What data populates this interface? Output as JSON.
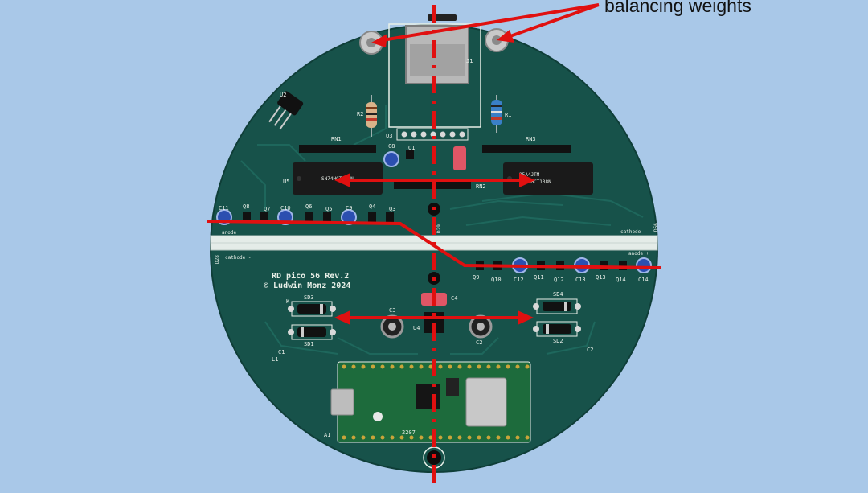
{
  "annotation": {
    "text": "balancing weights",
    "color": "#e01010"
  },
  "board": {
    "title": "RD pico 56 Rev.2",
    "copyright": "© Ludwin Monz 2024",
    "pcb_color": "#17524a",
    "silkscreen_color": "#e8efe8",
    "labels": {
      "j1": "J1",
      "u2": "U2",
      "u3": "U3",
      "u4": "U4",
      "u5": "U5",
      "r1": "R1",
      "r2": "R2",
      "rn1": "RN1",
      "rn2": "RN2",
      "rn3": "RN3",
      "c1": "C1",
      "c2": "C2",
      "c3": "C3",
      "c4": "C4",
      "c8": "C8",
      "c9": "C9",
      "c10": "C10",
      "c11": "C11",
      "c12": "C12",
      "c13": "C13",
      "c14": "C14",
      "q1": "Q1",
      "q3": "Q3",
      "q4": "Q4",
      "q5": "Q5",
      "q6": "Q6",
      "q7": "Q7",
      "q8": "Q8",
      "q9": "Q9",
      "q10": "Q10",
      "q11": "Q11",
      "q12": "Q12",
      "q13": "Q13",
      "q14": "Q14",
      "sd1": "SD1",
      "sd2": "SD2",
      "sd3": "SD3",
      "sd4": "SD4",
      "d28": "D28",
      "d29": "D29",
      "d56": "D56",
      "a1": "A1",
      "l1": "L1",
      "k": "K",
      "anode_plus": "anode +",
      "anode": "anode",
      "cathode_minus": "cathode -",
      "chip_left": "SN74HCT138N",
      "chip_right": "SN74HCT138N",
      "chip_right_top": "25A4JTM",
      "pico_code": "2207"
    }
  }
}
